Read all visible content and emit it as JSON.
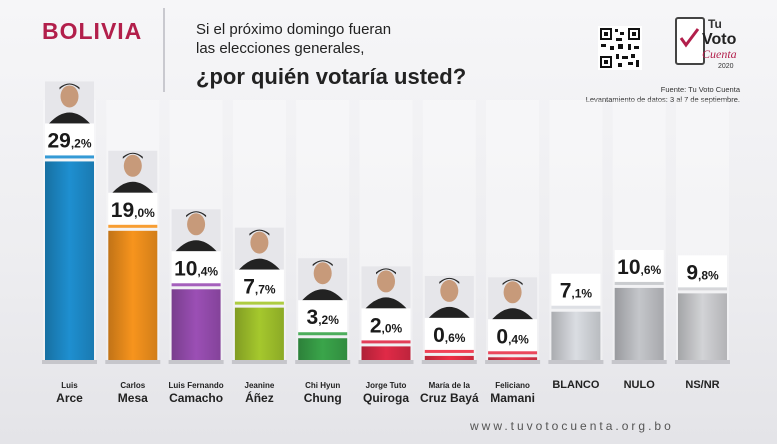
{
  "header": {
    "country": "BOLIVIA",
    "question_line1": "Si el próximo domingo fueran",
    "question_line2": "las elecciones generales,",
    "question_main": "¿por quién votaría usted?",
    "logo_line1": "Tu",
    "logo_line2": "Voto",
    "logo_line3": "Cuenta",
    "logo_year": "2020",
    "source_line1": "Fuente: Tu Voto Cuenta",
    "source_line2": "Levantamiento de datos: 3 al 7 de septiembre."
  },
  "footer": {
    "website": "www.tuvotocuenta.org.bo"
  },
  "colors": {
    "brand": "#b21f4b",
    "bars": [
      "#1e8fd0",
      "#f7941d",
      "#9b4fb5",
      "#a5c82d",
      "#3aa54a",
      "#e02a47",
      "#ee2f45",
      "#e8344b",
      "#dadde2",
      "#c4c6ca",
      "#d2d3d6"
    ]
  },
  "chart_data": {
    "type": "bar",
    "title": "¿por quién votaría usted?",
    "xlabel": "",
    "ylabel": "",
    "ylim": [
      0,
      30
    ],
    "grid": false,
    "legend": "none",
    "categories": [
      [
        "Luis",
        "Arce"
      ],
      [
        "Carlos",
        "Mesa"
      ],
      [
        "Luis Fernando",
        "Camacho"
      ],
      [
        "Jeanine",
        "Áñez"
      ],
      [
        "Chi Hyun",
        "Chung"
      ],
      [
        "Jorge Tuto",
        "Quiroga"
      ],
      [
        "María de la",
        "Cruz Bayá"
      ],
      [
        "Feliciano",
        "Mamani"
      ],
      [
        "BLANCO"
      ],
      [
        "NULO"
      ],
      [
        "NS/NR"
      ]
    ],
    "values": [
      29.2,
      19.0,
      10.4,
      7.7,
      3.2,
      2.0,
      0.6,
      0.4,
      7.1,
      10.6,
      9.8
    ],
    "labels": [
      [
        "29",
        ",2%"
      ],
      [
        "19",
        ",0%"
      ],
      [
        "10",
        ",4%"
      ],
      [
        "7",
        ",7%"
      ],
      [
        "3",
        ",2%"
      ],
      [
        "2",
        ",0%"
      ],
      [
        "0",
        ",6%"
      ],
      [
        "0",
        ",4%"
      ],
      [
        "7",
        ",1%"
      ],
      [
        "10",
        ",6%"
      ],
      [
        "9",
        ",8%"
      ]
    ]
  }
}
